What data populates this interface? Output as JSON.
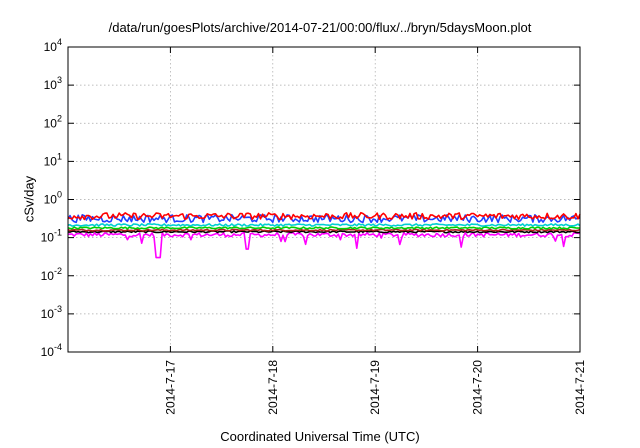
{
  "chart_data": {
    "type": "line",
    "title": "/data/run/goesPlots/archive/2014-07-21/00:00/flux/../bryn/5daysMoon.plot",
    "xlabel": "Coordinated Universal Time (UTC)",
    "ylabel": "cSv/day",
    "yscale": "log",
    "ylim": [
      0.0001,
      10000
    ],
    "yticks": [
      {
        "value": 10000,
        "base": "10",
        "exp": "4"
      },
      {
        "value": 1000,
        "base": "10",
        "exp": "3"
      },
      {
        "value": 100,
        "base": "10",
        "exp": "2"
      },
      {
        "value": 10,
        "base": "10",
        "exp": "1"
      },
      {
        "value": 1,
        "base": "10",
        "exp": "0"
      },
      {
        "value": 0.1,
        "base": "10",
        "exp": "-1"
      },
      {
        "value": 0.01,
        "base": "10",
        "exp": "-2"
      },
      {
        "value": 0.001,
        "base": "10",
        "exp": "-3"
      },
      {
        "value": 0.0001,
        "base": "10",
        "exp": "-4"
      }
    ],
    "xlim": [
      "2014-07-16",
      "2014-07-21"
    ],
    "xticks": [
      "2014-7-17",
      "2014-7-18",
      "2014-7-19",
      "2014-7-20",
      "2014-7-21"
    ],
    "grid": true,
    "legend": "none",
    "series": [
      {
        "color": "#ff00ff",
        "band": [
          0.105,
          0.135
        ],
        "dip_floor": 0.03,
        "points": [
          [
            "2014-07-16T00:00",
            0.13
          ],
          [
            "2014-07-16T12:00",
            0.12
          ],
          [
            "2014-07-16T21:00",
            0.03
          ],
          [
            "2014-07-17T06:00",
            0.12
          ],
          [
            "2014-07-17T18:00",
            0.05
          ],
          [
            "2014-07-18T12:00",
            0.12
          ],
          [
            "2014-07-19T06:00",
            0.1
          ],
          [
            "2014-07-20T00:00",
            0.12
          ],
          [
            "2014-07-20T18:00",
            0.12
          ],
          [
            "2014-07-21T00:00",
            0.12
          ]
        ]
      },
      {
        "color": "#000000",
        "band": [
          0.135,
          0.15
        ],
        "points": [
          [
            "2014-07-16T00:00",
            0.14
          ],
          [
            "2014-07-17T00:00",
            0.14
          ],
          [
            "2014-07-18T00:00",
            0.14
          ],
          [
            "2014-07-19T00:00",
            0.14
          ],
          [
            "2014-07-20T00:00",
            0.14
          ],
          [
            "2014-07-21T00:00",
            0.14
          ]
        ]
      },
      {
        "color": "#b02020",
        "band": [
          0.15,
          0.165
        ],
        "points": [
          [
            "2014-07-16T00:00",
            0.155
          ],
          [
            "2014-07-17T00:00",
            0.155
          ],
          [
            "2014-07-18T00:00",
            0.155
          ],
          [
            "2014-07-19T00:00",
            0.155
          ],
          [
            "2014-07-20T00:00",
            0.155
          ],
          [
            "2014-07-21T00:00",
            0.155
          ]
        ]
      },
      {
        "color": "#00d000",
        "band": [
          0.17,
          0.19
        ],
        "points": [
          [
            "2014-07-16T00:00",
            0.18
          ],
          [
            "2014-07-17T00:00",
            0.18
          ],
          [
            "2014-07-18T00:00",
            0.18
          ],
          [
            "2014-07-19T00:00",
            0.18
          ],
          [
            "2014-07-20T00:00",
            0.18
          ],
          [
            "2014-07-21T00:00",
            0.18
          ]
        ]
      },
      {
        "color": "#00d0d0",
        "band": [
          0.2,
          0.23
        ],
        "points": [
          [
            "2014-07-16T00:00",
            0.21
          ],
          [
            "2014-07-17T00:00",
            0.21
          ],
          [
            "2014-07-18T00:00",
            0.21
          ],
          [
            "2014-07-19T00:00",
            0.21
          ],
          [
            "2014-07-20T00:00",
            0.21
          ],
          [
            "2014-07-21T00:00",
            0.21
          ]
        ]
      },
      {
        "color": "#2040ff",
        "band": [
          0.25,
          0.4
        ],
        "points": [
          [
            "2014-07-16T00:00",
            0.3
          ],
          [
            "2014-07-17T00:00",
            0.3
          ],
          [
            "2014-07-18T00:00",
            0.3
          ],
          [
            "2014-07-19T00:00",
            0.3
          ],
          [
            "2014-07-20T00:00",
            0.3
          ],
          [
            "2014-07-21T00:00",
            0.3
          ]
        ]
      },
      {
        "color": "#ff0000",
        "band": [
          0.3,
          0.45
        ],
        "points": [
          [
            "2014-07-16T00:00",
            0.38
          ],
          [
            "2014-07-17T00:00",
            0.38
          ],
          [
            "2014-07-18T00:00",
            0.38
          ],
          [
            "2014-07-19T00:00",
            0.38
          ],
          [
            "2014-07-20T00:00",
            0.38
          ],
          [
            "2014-07-21T00:00",
            0.38
          ]
        ]
      }
    ]
  }
}
